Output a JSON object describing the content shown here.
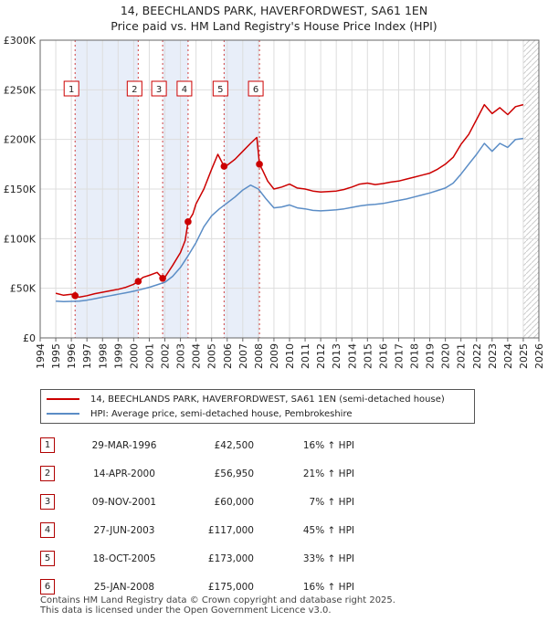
{
  "title_line1": "14, BEECHLANDS PARK, HAVERFORDWEST, SA61 1EN",
  "title_line2": "Price paid vs. HM Land Registry's House Price Index (HPI)",
  "colors": {
    "property": "#cc0000",
    "hpi": "#5b8dc6",
    "shade": "#e8eef9",
    "marker_border": "#cc0000"
  },
  "chart_data": {
    "type": "line",
    "title": "14, BEECHLANDS PARK, HAVERFORDWEST, SA61 1EN — Price paid vs. HM Land Registry's House Price Index (HPI)",
    "xlim": [
      1994,
      2026
    ],
    "ylim": [
      0,
      300000
    ],
    "x_ticks": [
      1994,
      1995,
      1996,
      1997,
      1998,
      1999,
      2000,
      2001,
      2002,
      2003,
      2004,
      2005,
      2006,
      2007,
      2008,
      2009,
      2010,
      2011,
      2012,
      2013,
      2014,
      2015,
      2016,
      2017,
      2018,
      2019,
      2020,
      2021,
      2022,
      2023,
      2024,
      2025,
      2026
    ],
    "y_ticks": [
      0,
      50000,
      100000,
      150000,
      200000,
      250000,
      300000
    ],
    "y_tick_labels": [
      "£0",
      "£50K",
      "£100K",
      "£150K",
      "£200K",
      "£250K",
      "£300K"
    ],
    "shaded_ranges": [
      [
        1996.24,
        2000.29
      ],
      [
        2001.86,
        2003.49
      ],
      [
        2005.8,
        2008.07
      ]
    ],
    "projection_start": 2025.0,
    "series": [
      {
        "name": "14, BEECHLANDS PARK, HAVERFORDWEST, SA61 1EN (semi-detached house)",
        "x": [
          1995.0,
          1995.5,
          1996.0,
          1996.24,
          1996.5,
          1997.0,
          1997.5,
          1998.0,
          1998.5,
          1999.0,
          1999.5,
          2000.0,
          2000.29,
          2000.6,
          2001.0,
          2001.5,
          2001.86,
          2002.0,
          2002.5,
          2003.0,
          2003.3,
          2003.49,
          2003.8,
          2004.0,
          2004.5,
          2005.0,
          2005.4,
          2005.8,
          2006.0,
          2006.5,
          2007.0,
          2007.5,
          2007.9,
          2008.07,
          2008.3,
          2008.6,
          2009.0,
          2009.5,
          2010.0,
          2010.5,
          2011.0,
          2011.5,
          2012.0,
          2012.5,
          2013.0,
          2013.5,
          2014.0,
          2014.5,
          2015.0,
          2015.5,
          2016.0,
          2016.5,
          2017.0,
          2017.5,
          2018.0,
          2018.5,
          2019.0,
          2019.5,
          2020.0,
          2020.5,
          2021.0,
          2021.5,
          2022.0,
          2022.5,
          2023.0,
          2023.5,
          2024.0,
          2024.5,
          2025.0
        ],
        "values": [
          45000,
          43000,
          44000,
          42500,
          41000,
          42500,
          44500,
          46000,
          47500,
          49000,
          51000,
          54000,
          56950,
          61000,
          63000,
          66000,
          60000,
          61000,
          73000,
          86000,
          98000,
          117000,
          125000,
          135000,
          150000,
          170000,
          185000,
          173000,
          174000,
          180000,
          188000,
          196000,
          202000,
          175000,
          168000,
          158000,
          150000,
          152000,
          155000,
          151000,
          150000,
          148000,
          147000,
          147500,
          148000,
          149500,
          152000,
          155000,
          156000,
          154500,
          155500,
          157000,
          158000,
          160000,
          162000,
          164000,
          166000,
          170000,
          175000,
          182000,
          195000,
          205000,
          220000,
          235000,
          226000,
          232000,
          225000,
          233000,
          235000
        ]
      },
      {
        "name": "HPI: Average price, semi-detached house, Pembrokeshire",
        "x": [
          1995.0,
          1995.5,
          1996.0,
          1996.5,
          1997.0,
          1997.5,
          1998.0,
          1998.5,
          1999.0,
          1999.5,
          2000.0,
          2000.5,
          2001.0,
          2001.5,
          2002.0,
          2002.5,
          2003.0,
          2003.5,
          2004.0,
          2004.5,
          2005.0,
          2005.5,
          2006.0,
          2006.5,
          2007.0,
          2007.5,
          2008.0,
          2008.5,
          2009.0,
          2009.5,
          2010.0,
          2010.5,
          2011.0,
          2011.5,
          2012.0,
          2012.5,
          2013.0,
          2013.5,
          2014.0,
          2014.5,
          2015.0,
          2015.5,
          2016.0,
          2016.5,
          2017.0,
          2017.5,
          2018.0,
          2018.5,
          2019.0,
          2019.5,
          2020.0,
          2020.5,
          2021.0,
          2021.5,
          2022.0,
          2022.5,
          2023.0,
          2023.5,
          2024.0,
          2024.5,
          2025.0
        ],
        "values": [
          37000,
          36500,
          36800,
          37000,
          38000,
          39500,
          41000,
          42500,
          44000,
          45500,
          47000,
          49000,
          51000,
          53500,
          56000,
          62000,
          71000,
          83000,
          96000,
          112000,
          123000,
          130000,
          136000,
          142000,
          149000,
          154000,
          150000,
          140000,
          131000,
          132000,
          134000,
          131000,
          130000,
          128500,
          128000,
          128500,
          129000,
          130000,
          131500,
          133000,
          134000,
          134500,
          135500,
          137000,
          138500,
          140000,
          142000,
          144000,
          146000,
          148500,
          151000,
          156000,
          165000,
          175000,
          185000,
          196000,
          188000,
          196000,
          192000,
          200000,
          201000
        ]
      }
    ],
    "sales": [
      {
        "label": "1",
        "x": 1996.24,
        "y": 42500
      },
      {
        "label": "2",
        "x": 2000.29,
        "y": 56950
      },
      {
        "label": "3",
        "x": 2001.86,
        "y": 60000
      },
      {
        "label": "4",
        "x": 2003.49,
        "y": 117000
      },
      {
        "label": "5",
        "x": 2005.8,
        "y": 173000
      },
      {
        "label": "6",
        "x": 2008.07,
        "y": 175000
      }
    ]
  },
  "legend": {
    "items": [
      {
        "label": "14, BEECHLANDS PARK, HAVERFORDWEST, SA61 1EN (semi-detached house)"
      },
      {
        "label": "HPI: Average price, semi-detached house, Pembrokeshire"
      }
    ]
  },
  "sales_table": [
    {
      "num": "1",
      "date": "29-MAR-1996",
      "price": "£42,500",
      "hpi": "16% ↑ HPI"
    },
    {
      "num": "2",
      "date": "14-APR-2000",
      "price": "£56,950",
      "hpi": "21% ↑ HPI"
    },
    {
      "num": "3",
      "date": "09-NOV-2001",
      "price": "£60,000",
      "hpi": "7% ↑ HPI"
    },
    {
      "num": "4",
      "date": "27-JUN-2003",
      "price": "£117,000",
      "hpi": "45% ↑ HPI"
    },
    {
      "num": "5",
      "date": "18-OCT-2005",
      "price": "£173,000",
      "hpi": "33% ↑ HPI"
    },
    {
      "num": "6",
      "date": "25-JAN-2008",
      "price": "£175,000",
      "hpi": "16% ↑ HPI"
    }
  ],
  "footer": {
    "line1": "Contains HM Land Registry data © Crown copyright and database right 2025.",
    "line2": "This data is licensed under the Open Government Licence v3.0."
  }
}
